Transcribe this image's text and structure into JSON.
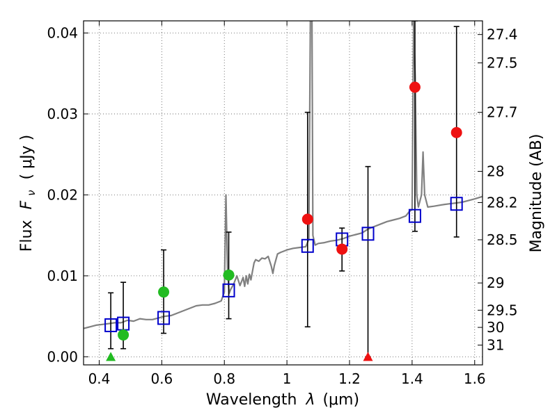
{
  "chart_data": {
    "type": "scatter",
    "xlabel_prefix": "Wavelength",
    "xlabel_symbol": "λ",
    "xlabel_unit": "(μm)",
    "ylabel_prefix": "Flux",
    "ylabel_symbol": "F",
    "ylabel_subscript": "ν",
    "ylabel_unit": "( μJy )",
    "y2label": "Magnitude (AB)",
    "xlim": [
      0.35,
      1.625
    ],
    "ylim": [
      -0.001,
      0.0415
    ],
    "xticks": [
      0.4,
      0.6,
      0.8,
      1.0,
      1.2,
      1.4,
      1.6
    ],
    "xtick_labels": [
      "0.4",
      "0.6",
      "0.8",
      "1",
      "1.2",
      "1.4",
      "1.6"
    ],
    "yticks": [
      0.0,
      0.01,
      0.02,
      0.03,
      0.04
    ],
    "ytick_labels": [
      "0.00",
      "0.01",
      "0.02",
      "0.03",
      "0.04"
    ],
    "y2ticks": [
      {
        "mag": 27.4,
        "label": "27.4"
      },
      {
        "mag": 27.5,
        "label": "27.5"
      },
      {
        "mag": 27.7,
        "label": "27.7"
      },
      {
        "mag": 28.0,
        "label": "28"
      },
      {
        "mag": 28.2,
        "label": "28.2"
      },
      {
        "mag": 28.5,
        "label": "28.5"
      },
      {
        "mag": 29.0,
        "label": "29"
      },
      {
        "mag": 29.5,
        "label": "29.5"
      },
      {
        "mag": 30.0,
        "label": "30"
      },
      {
        "mag": 31.0,
        "label": "31"
      }
    ],
    "grid": true,
    "colors": {
      "spectrum": "#808080",
      "model": "#0000cc",
      "detected_optical": "#22bb22",
      "detected_nir": "#ee1111",
      "errorbar": "#000000",
      "grid": "#555555"
    },
    "spectrum": [
      [
        0.35,
        0.0035
      ],
      [
        0.37,
        0.0037
      ],
      [
        0.39,
        0.0039
      ],
      [
        0.41,
        0.004
      ],
      [
        0.43,
        0.0041
      ],
      [
        0.45,
        0.0042
      ],
      [
        0.47,
        0.0042
      ],
      [
        0.49,
        0.0045
      ],
      [
        0.51,
        0.0044
      ],
      [
        0.53,
        0.0047
      ],
      [
        0.55,
        0.0046
      ],
      [
        0.57,
        0.0046
      ],
      [
        0.59,
        0.0048
      ],
      [
        0.61,
        0.005
      ],
      [
        0.63,
        0.0051
      ],
      [
        0.65,
        0.0054
      ],
      [
        0.67,
        0.0057
      ],
      [
        0.69,
        0.006
      ],
      [
        0.71,
        0.0063
      ],
      [
        0.73,
        0.0064
      ],
      [
        0.75,
        0.0064
      ],
      [
        0.77,
        0.0066
      ],
      [
        0.79,
        0.0069
      ],
      [
        0.8,
        0.008
      ],
      [
        0.805,
        0.02
      ],
      [
        0.81,
        0.011
      ],
      [
        0.815,
        0.0078
      ],
      [
        0.82,
        0.0083
      ],
      [
        0.83,
        0.009
      ],
      [
        0.84,
        0.01
      ],
      [
        0.85,
        0.0088
      ],
      [
        0.86,
        0.0098
      ],
      [
        0.865,
        0.0087
      ],
      [
        0.87,
        0.01
      ],
      [
        0.875,
        0.009
      ],
      [
        0.88,
        0.0102
      ],
      [
        0.885,
        0.0095
      ],
      [
        0.89,
        0.0106
      ],
      [
        0.895,
        0.0116
      ],
      [
        0.9,
        0.012
      ],
      [
        0.91,
        0.0118
      ],
      [
        0.92,
        0.0122
      ],
      [
        0.93,
        0.0121
      ],
      [
        0.94,
        0.0124
      ],
      [
        0.95,
        0.0112
      ],
      [
        0.955,
        0.0103
      ],
      [
        0.96,
        0.0113
      ],
      [
        0.97,
        0.0127
      ],
      [
        0.98,
        0.0129
      ],
      [
        1.0,
        0.0132
      ],
      [
        1.02,
        0.0134
      ],
      [
        1.04,
        0.0135
      ],
      [
        1.06,
        0.0136
      ],
      [
        1.07,
        0.0145
      ],
      [
        1.075,
        0.042
      ],
      [
        1.08,
        0.0415
      ],
      [
        1.083,
        0.015
      ],
      [
        1.09,
        0.0138
      ],
      [
        1.1,
        0.014
      ],
      [
        1.12,
        0.0141
      ],
      [
        1.14,
        0.0143
      ],
      [
        1.16,
        0.0144
      ],
      [
        1.18,
        0.0146
      ],
      [
        1.2,
        0.0149
      ],
      [
        1.22,
        0.0151
      ],
      [
        1.24,
        0.0153
      ],
      [
        1.26,
        0.0158
      ],
      [
        1.28,
        0.0161
      ],
      [
        1.3,
        0.0164
      ],
      [
        1.32,
        0.0167
      ],
      [
        1.34,
        0.0169
      ],
      [
        1.36,
        0.0171
      ],
      [
        1.38,
        0.0174
      ],
      [
        1.39,
        0.0179
      ],
      [
        1.4,
        0.0182
      ],
      [
        1.405,
        0.0415
      ],
      [
        1.41,
        0.0345
      ],
      [
        1.415,
        0.02
      ],
      [
        1.42,
        0.0185
      ],
      [
        1.43,
        0.02
      ],
      [
        1.435,
        0.0253
      ],
      [
        1.44,
        0.02
      ],
      [
        1.45,
        0.0185
      ],
      [
        1.47,
        0.0186
      ],
      [
        1.5,
        0.0188
      ],
      [
        1.52,
        0.0189
      ],
      [
        1.54,
        0.019
      ],
      [
        1.56,
        0.0191
      ],
      [
        1.58,
        0.0193
      ],
      [
        1.6,
        0.0195
      ],
      [
        1.625,
        0.0198
      ]
    ],
    "model_points": [
      {
        "x": 0.437,
        "y": 0.0039
      },
      {
        "x": 0.477,
        "y": 0.0041
      },
      {
        "x": 0.606,
        "y": 0.0048
      },
      {
        "x": 0.814,
        "y": 0.0082
      },
      {
        "x": 1.066,
        "y": 0.0137
      },
      {
        "x": 1.176,
        "y": 0.0145
      },
      {
        "x": 1.259,
        "y": 0.0152
      },
      {
        "x": 1.409,
        "y": 0.0174
      },
      {
        "x": 1.542,
        "y": 0.0189
      }
    ],
    "observed_points": [
      {
        "x": 0.437,
        "y": 0.0,
        "yerr_low": 0.001,
        "yerr_high": 0.0079,
        "color": "detected_optical",
        "marker": "triangle",
        "name": "obs-point-f435w"
      },
      {
        "x": 0.477,
        "y": 0.0027,
        "yerr_low": 0.001,
        "yerr_high": 0.0092,
        "color": "detected_optical",
        "marker": "circle",
        "name": "obs-point-f475w"
      },
      {
        "x": 0.606,
        "y": 0.008,
        "yerr_low": 0.0029,
        "yerr_high": 0.0132,
        "color": "detected_optical",
        "marker": "circle",
        "name": "obs-point-f606w"
      },
      {
        "x": 0.814,
        "y": 0.0101,
        "yerr_low": 0.0047,
        "yerr_high": 0.0154,
        "color": "detected_optical",
        "marker": "circle",
        "name": "obs-point-f814w"
      },
      {
        "x": 1.066,
        "y": 0.017,
        "yerr_low": 0.0037,
        "yerr_high": 0.0302,
        "color": "detected_nir",
        "marker": "circle",
        "name": "obs-point-f105w"
      },
      {
        "x": 1.176,
        "y": 0.0133,
        "yerr_low": 0.0106,
        "yerr_high": 0.0159,
        "color": "detected_nir",
        "marker": "circle",
        "name": "obs-point-f110w"
      },
      {
        "x": 1.259,
        "y": 0.0,
        "yerr_low": 0.0,
        "yerr_high": 0.0235,
        "color": "detected_nir",
        "marker": "triangle",
        "name": "obs-point-f125w"
      },
      {
        "x": 1.409,
        "y": 0.0333,
        "yerr_low": 0.0155,
        "yerr_high": 0.0415,
        "color": "detected_nir",
        "marker": "circle",
        "name": "obs-point-f140w"
      },
      {
        "x": 1.542,
        "y": 0.0277,
        "yerr_low": 0.0148,
        "yerr_high": 0.0408,
        "color": "detected_nir",
        "marker": "circle",
        "name": "obs-point-f160w"
      }
    ]
  }
}
